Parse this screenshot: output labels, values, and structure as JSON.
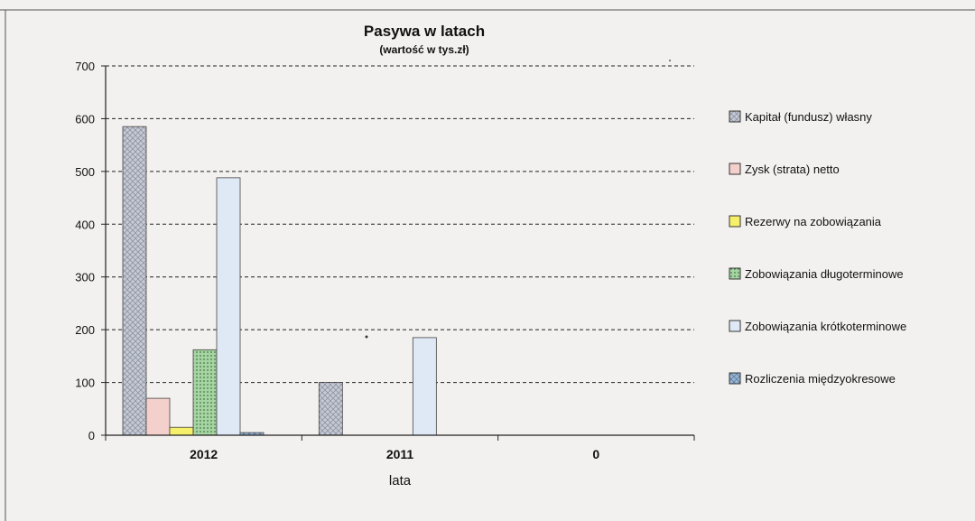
{
  "chart_data": {
    "type": "bar",
    "title": "Pasywa w latach",
    "subtitle": "(wartość w tys.zł)",
    "xlabel": "lata",
    "ylabel": "",
    "categories": [
      "2012",
      "2011",
      "0"
    ],
    "ylim": [
      0,
      700
    ],
    "yticks": [
      0,
      100,
      200,
      300,
      400,
      500,
      600,
      700
    ],
    "grid": "horizontal dashed",
    "legend_position": "right",
    "series": [
      {
        "name": "Kapitał (fundusz) własny",
        "values": [
          585,
          100,
          0
        ],
        "color": "#c4c8d2",
        "pattern": "crosshatch"
      },
      {
        "name": "Zysk (strata) netto",
        "values": [
          70,
          0,
          0
        ],
        "color": "#f3d0cb",
        "pattern": "none"
      },
      {
        "name": "Rezerwy na zobowiązania",
        "values": [
          15,
          0,
          0
        ],
        "color": "#f5ef6a",
        "pattern": "none"
      },
      {
        "name": "Zobowiązania długoterminowe",
        "values": [
          162,
          0,
          0
        ],
        "color": "#9cc89a",
        "pattern": "dots"
      },
      {
        "name": "Zobowiązania krótkoterminowe",
        "values": [
          488,
          185,
          0
        ],
        "color": "#dfe9f6",
        "pattern": "none"
      },
      {
        "name": "Rozliczenia międzyokresowe",
        "values": [
          5,
          0,
          0
        ],
        "color": "#9ab4cf",
        "pattern": "crosshatch"
      }
    ]
  }
}
